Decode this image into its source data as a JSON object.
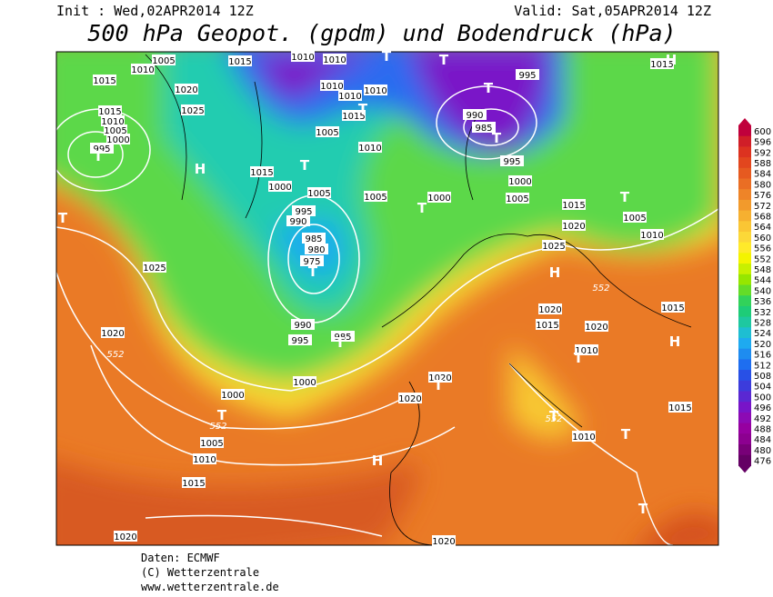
{
  "header": {
    "init": "Init : Wed,02APR2014 12Z",
    "valid": "Valid: Sat,05APR2014 12Z",
    "title": "500 hPa Geopot. (gpdm) und Bodendruck (hPa)"
  },
  "colorbar": {
    "values": [
      600,
      596,
      592,
      588,
      584,
      580,
      576,
      572,
      568,
      564,
      560,
      556,
      552,
      548,
      544,
      540,
      536,
      532,
      528,
      524,
      520,
      516,
      512,
      508,
      504,
      500,
      496,
      492,
      488,
      484,
      480,
      476
    ],
    "colors": [
      "#c0003c",
      "#d01e28",
      "#dc3220",
      "#e2461e",
      "#e65a20",
      "#ea6e24",
      "#ee8428",
      "#f29a2c",
      "#f6b030",
      "#fac634",
      "#fcd838",
      "#ffea2a",
      "#f4f400",
      "#c8f000",
      "#96e600",
      "#64dc28",
      "#32d25a",
      "#1ecc78",
      "#1ec8a0",
      "#1ebed2",
      "#1eaaf0",
      "#1e8cf0",
      "#1e6ef0",
      "#2850e6",
      "#3c3cdc",
      "#5a28d2",
      "#7814c8",
      "#8c0ab4",
      "#9600a0",
      "#8c0090",
      "#780078",
      "#640064"
    ]
  },
  "map": {
    "isobar_labels": [
      1005,
      1010,
      1015,
      1010,
      1010,
      1015,
      1020,
      1010,
      1010,
      1010,
      1015,
      1025,
      1015,
      1010,
      1005,
      1000,
      995,
      1005,
      1010,
      1015,
      990,
      985,
      995,
      995,
      1000,
      1005,
      1000,
      1005,
      1005,
      1000,
      995,
      990,
      985,
      980,
      975,
      1015,
      1020,
      1005,
      1010,
      1025,
      1025,
      552,
      1020,
      1015,
      1020,
      1015,
      1010,
      990,
      995,
      985,
      1020,
      552,
      1000,
      1020,
      1020,
      1000,
      552,
      1005,
      1010,
      1015,
      552,
      1010,
      1015,
      1020,
      1020,
      1015
    ],
    "markers": [
      "T",
      "T",
      "H",
      "T",
      "T",
      "T",
      "T",
      "T",
      "T",
      "T",
      "H",
      "T",
      "T",
      "H",
      "H",
      "T",
      "T",
      "T",
      "T",
      "H",
      "T",
      "T",
      "T"
    ]
  },
  "footer": {
    "source": "Daten: ECMWF",
    "copyright": "(C) Wetterzentrale",
    "url": "www.wetterzentrale.de"
  }
}
